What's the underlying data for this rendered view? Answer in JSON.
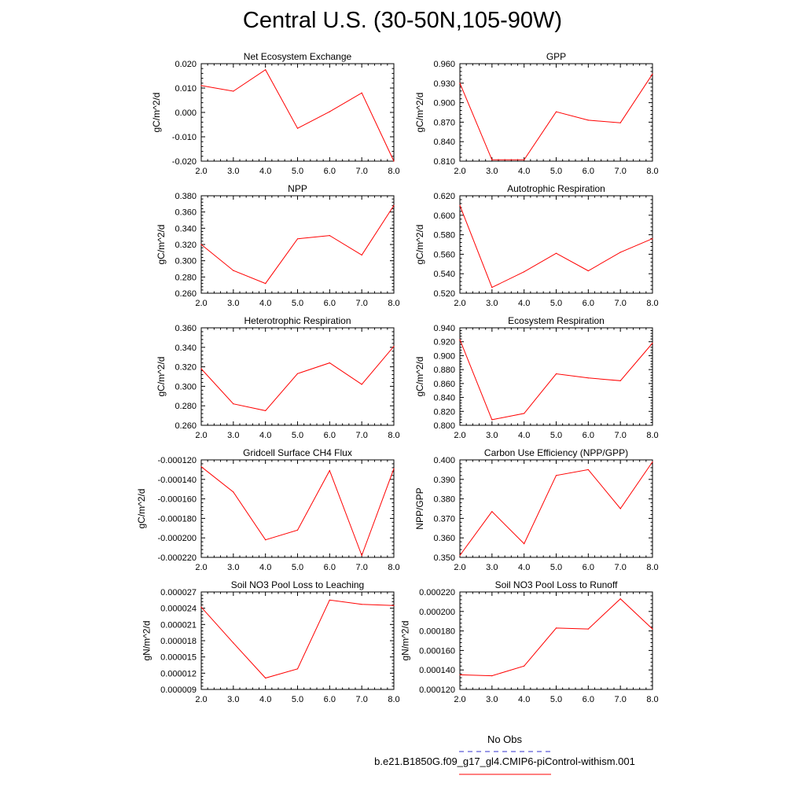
{
  "title": "Central U.S. (30-50N,105-90W)",
  "colors": {
    "line": "#ff0000",
    "obs": "#3333cc",
    "axis": "#000000"
  },
  "legend": [
    {
      "label": "No Obs",
      "style": "dashed",
      "color": "#3333cc"
    },
    {
      "label": "b.e21.B1850G.f09_g17_gl4.CMIP6-piControl-withism.001",
      "style": "solid",
      "color": "#ff0000"
    }
  ],
  "chart_data": [
    {
      "type": "line",
      "title": "Net Ecosystem Exchange",
      "ylabel": "gC/m^2/d",
      "x": [
        2.0,
        3.0,
        4.0,
        5.0,
        6.0,
        7.0,
        8.0
      ],
      "xlim": [
        2.0,
        8.0
      ],
      "xticks": [
        "2.0",
        "3.0",
        "4.0",
        "5.0",
        "6.0",
        "7.0",
        "8.0"
      ],
      "ylim": [
        -0.02,
        0.02
      ],
      "yticks": [
        "-0.020",
        "-0.010",
        "0.000",
        "0.010",
        "0.020"
      ],
      "series": [
        {
          "values": [
            0.011,
            0.0087,
            0.0175,
            -0.0065,
            0.0003,
            0.008,
            -0.02
          ]
        }
      ]
    },
    {
      "type": "line",
      "title": "GPP",
      "ylabel": "gC/m^2/d",
      "x": [
        2.0,
        3.0,
        4.0,
        5.0,
        6.0,
        7.0,
        8.0
      ],
      "xlim": [
        2.0,
        8.0
      ],
      "xticks": [
        "2.0",
        "3.0",
        "4.0",
        "5.0",
        "6.0",
        "7.0",
        "8.0"
      ],
      "ylim": [
        0.81,
        0.96
      ],
      "yticks": [
        "0.810",
        "0.840",
        "0.870",
        "0.900",
        "0.930",
        "0.960"
      ],
      "series": [
        {
          "values": [
            0.93,
            0.812,
            0.812,
            0.886,
            0.873,
            0.869,
            0.944
          ]
        }
      ]
    },
    {
      "type": "line",
      "title": "NPP",
      "ylabel": "gC/m^2/d",
      "x": [
        2.0,
        3.0,
        4.0,
        5.0,
        6.0,
        7.0,
        8.0
      ],
      "xlim": [
        2.0,
        8.0
      ],
      "xticks": [
        "2.0",
        "3.0",
        "4.0",
        "5.0",
        "6.0",
        "7.0",
        "8.0"
      ],
      "ylim": [
        0.26,
        0.38
      ],
      "yticks": [
        "0.260",
        "0.280",
        "0.300",
        "0.320",
        "0.340",
        "0.360",
        "0.380"
      ],
      "series": [
        {
          "values": [
            0.32,
            0.288,
            0.272,
            0.327,
            0.331,
            0.307,
            0.368
          ]
        }
      ]
    },
    {
      "type": "line",
      "title": "Autotrophic Respiration",
      "ylabel": "gC/m^2/d",
      "x": [
        2.0,
        3.0,
        4.0,
        5.0,
        6.0,
        7.0,
        8.0
      ],
      "xlim": [
        2.0,
        8.0
      ],
      "xticks": [
        "2.0",
        "3.0",
        "4.0",
        "5.0",
        "6.0",
        "7.0",
        "8.0"
      ],
      "ylim": [
        0.52,
        0.62
      ],
      "yticks": [
        "0.520",
        "0.540",
        "0.560",
        "0.580",
        "0.600",
        "0.620"
      ],
      "series": [
        {
          "values": [
            0.61,
            0.526,
            0.542,
            0.561,
            0.543,
            0.562,
            0.576
          ]
        }
      ]
    },
    {
      "type": "line",
      "title": "Heterotrophic Respiration",
      "ylabel": "gC/m^2/d",
      "x": [
        2.0,
        3.0,
        4.0,
        5.0,
        6.0,
        7.0,
        8.0
      ],
      "xlim": [
        2.0,
        8.0
      ],
      "xticks": [
        "2.0",
        "3.0",
        "4.0",
        "5.0",
        "6.0",
        "7.0",
        "8.0"
      ],
      "ylim": [
        0.26,
        0.36
      ],
      "yticks": [
        "0.260",
        "0.280",
        "0.300",
        "0.320",
        "0.340",
        "0.360"
      ],
      "series": [
        {
          "values": [
            0.318,
            0.282,
            0.275,
            0.313,
            0.324,
            0.302,
            0.341
          ]
        }
      ]
    },
    {
      "type": "line",
      "title": "Ecosystem Respiration",
      "ylabel": "gC/m^2/d",
      "x": [
        2.0,
        3.0,
        4.0,
        5.0,
        6.0,
        7.0,
        8.0
      ],
      "xlim": [
        2.0,
        8.0
      ],
      "xticks": [
        "2.0",
        "3.0",
        "4.0",
        "5.0",
        "6.0",
        "7.0",
        "8.0"
      ],
      "ylim": [
        0.8,
        0.94
      ],
      "yticks": [
        "0.800",
        "0.820",
        "0.840",
        "0.860",
        "0.880",
        "0.900",
        "0.920",
        "0.940"
      ],
      "series": [
        {
          "values": [
            0.923,
            0.808,
            0.817,
            0.874,
            0.868,
            0.864,
            0.918
          ]
        }
      ]
    },
    {
      "type": "line",
      "title": "Gridcell Surface CH4 Flux",
      "ylabel": "gC/m^2/d",
      "x": [
        2.0,
        3.0,
        4.0,
        5.0,
        6.0,
        7.0,
        8.0
      ],
      "xlim": [
        2.0,
        8.0
      ],
      "xticks": [
        "2.0",
        "3.0",
        "4.0",
        "5.0",
        "6.0",
        "7.0",
        "8.0"
      ],
      "ylim": [
        -0.00022,
        -0.00012
      ],
      "yticks": [
        "-0.000220",
        "-0.000200",
        "-0.000180",
        "-0.000160",
        "-0.000140",
        "-0.000120"
      ],
      "series": [
        {
          "values": [
            -0.000127,
            -0.000153,
            -0.000202,
            -0.000192,
            -0.000131,
            -0.000218,
            -0.000129
          ]
        }
      ]
    },
    {
      "type": "line",
      "title": "Carbon Use Efficiency (NPP/GPP)",
      "ylabel": "NPP/GPP",
      "x": [
        2.0,
        3.0,
        4.0,
        5.0,
        6.0,
        7.0,
        8.0
      ],
      "xlim": [
        2.0,
        8.0
      ],
      "xticks": [
        "2.0",
        "3.0",
        "4.0",
        "5.0",
        "6.0",
        "7.0",
        "8.0"
      ],
      "ylim": [
        0.35,
        0.4
      ],
      "yticks": [
        "0.350",
        "0.360",
        "0.370",
        "0.380",
        "0.390",
        "0.400"
      ],
      "series": [
        {
          "values": [
            0.351,
            0.3735,
            0.357,
            0.392,
            0.395,
            0.375,
            0.399
          ]
        }
      ]
    },
    {
      "type": "line",
      "title": "Soil NO3 Pool Loss to Leaching",
      "ylabel": "gN/m^2/d",
      "x": [
        2.0,
        3.0,
        4.0,
        5.0,
        6.0,
        7.0,
        8.0
      ],
      "xlim": [
        2.0,
        8.0
      ],
      "xticks": [
        "2.0",
        "3.0",
        "4.0",
        "5.0",
        "6.0",
        "7.0",
        "8.0"
      ],
      "ylim": [
        9e-06,
        2.7e-05
      ],
      "yticks": [
        "0.000009",
        "0.000012",
        "0.000015",
        "0.000018",
        "0.000021",
        "0.000024",
        "0.000027"
      ],
      "series": [
        {
          "values": [
            2.42e-05,
            1.76e-05,
            1.11e-05,
            1.28e-05,
            2.55e-05,
            2.47e-05,
            2.45e-05
          ]
        }
      ]
    },
    {
      "type": "line",
      "title": "Soil NO3 Pool Loss to Runoff",
      "ylabel": "gN/m^2/d",
      "x": [
        2.0,
        3.0,
        4.0,
        5.0,
        6.0,
        7.0,
        8.0
      ],
      "xlim": [
        2.0,
        8.0
      ],
      "xticks": [
        "2.0",
        "3.0",
        "4.0",
        "5.0",
        "6.0",
        "7.0",
        "8.0"
      ],
      "ylim": [
        0.00012,
        0.00022
      ],
      "yticks": [
        "0.000120",
        "0.000140",
        "0.000160",
        "0.000180",
        "0.000200",
        "0.000220"
      ],
      "series": [
        {
          "values": [
            0.000135,
            0.000134,
            0.000144,
            0.000183,
            0.000182,
            0.000213,
            0.000182
          ]
        }
      ]
    }
  ]
}
